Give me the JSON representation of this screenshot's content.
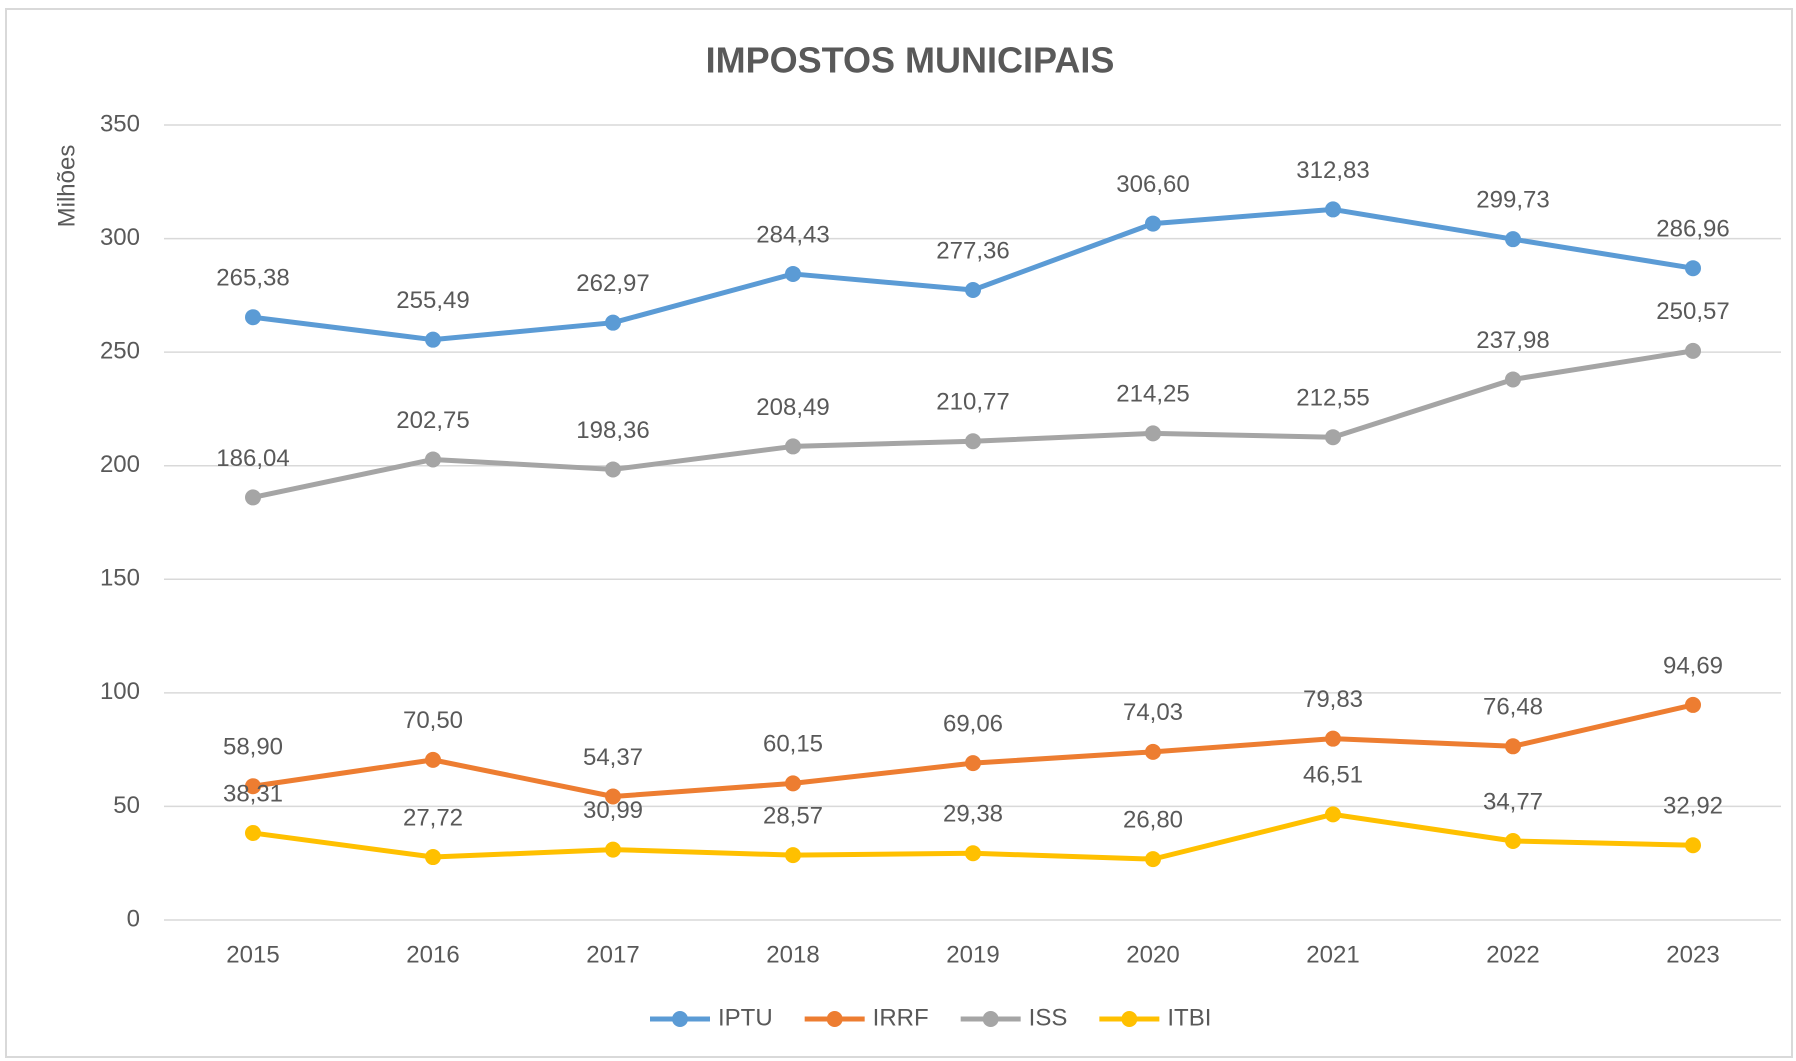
{
  "chart_data": {
    "type": "line",
    "title": "IMPOSTOS MUNICIPAIS",
    "y_label": "Milhões",
    "categories": [
      "2015",
      "2016",
      "2017",
      "2018",
      "2019",
      "2020",
      "2021",
      "2022",
      "2023"
    ],
    "series": [
      {
        "name": "IPTU",
        "color": "#5b9bd5",
        "values": [
          265.38,
          255.49,
          262.97,
          284.43,
          277.36,
          306.6,
          312.83,
          299.73,
          286.96
        ],
        "value_labels": [
          "265,38",
          "255,49",
          "262,97",
          "284,43",
          "277,36",
          "306,60",
          "312,83",
          "299,73",
          "286,96"
        ]
      },
      {
        "name": "IRRF",
        "color": "#ed7d31",
        "values": [
          58.9,
          70.5,
          54.37,
          60.15,
          69.06,
          74.03,
          79.83,
          76.48,
          94.69
        ],
        "value_labels": [
          "58,90",
          "70,50",
          "54,37",
          "60,15",
          "69,06",
          "74,03",
          "79,83",
          "76,48",
          "94,69"
        ]
      },
      {
        "name": "ISS",
        "color": "#a5a5a5",
        "values": [
          186.04,
          202.75,
          198.36,
          208.49,
          210.77,
          214.25,
          212.55,
          237.98,
          250.57
        ],
        "value_labels": [
          "186,04",
          "202,75",
          "198,36",
          "208,49",
          "210,77",
          "214,25",
          "212,55",
          "237,98",
          "250,57"
        ]
      },
      {
        "name": "ITBI",
        "color": "#ffc000",
        "values": [
          38.31,
          27.72,
          30.99,
          28.57,
          29.38,
          26.8,
          46.51,
          34.77,
          32.92
        ],
        "value_labels": [
          "38,31",
          "27,72",
          "30,99",
          "28,57",
          "29,38",
          "26,80",
          "46,51",
          "34,77",
          "32,92"
        ]
      }
    ],
    "ylim": [
      0,
      350
    ],
    "yticks": [
      0,
      50,
      100,
      150,
      200,
      250,
      300,
      350
    ],
    "grid": true,
    "legend": "bottom"
  }
}
